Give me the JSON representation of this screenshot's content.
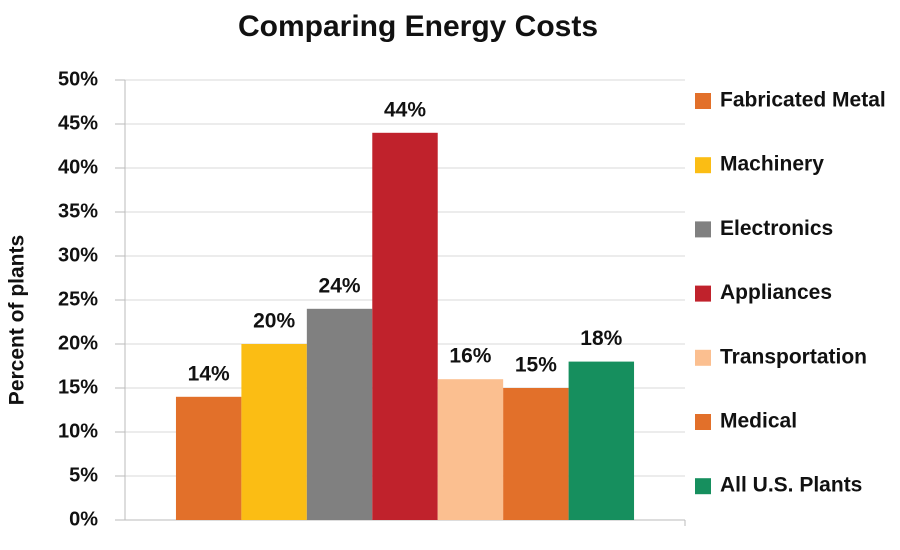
{
  "chart_data": {
    "type": "bar",
    "title": "Comparing Energy Costs",
    "y_label": "Percent of plants",
    "categories": [
      null
    ],
    "series": [
      {
        "name": "Fabricated Metal",
        "color": "#e2702a",
        "values": [
          14
        ],
        "value_labels": [
          "14%"
        ]
      },
      {
        "name": "Machinery",
        "color": "#fbbd14",
        "values": [
          20
        ],
        "value_labels": [
          "20%"
        ]
      },
      {
        "name": "Electronics",
        "color": "#808080",
        "values": [
          24
        ],
        "value_labels": [
          "24%"
        ]
      },
      {
        "name": "Appliances",
        "color": "#c0222c",
        "values": [
          44
        ],
        "value_labels": [
          "44%"
        ]
      },
      {
        "name": "Transportation",
        "color": "#fbbf90",
        "values": [
          16
        ],
        "value_labels": [
          "16%"
        ]
      },
      {
        "name": "Medical",
        "color": "#e2702a",
        "values": [
          15
        ],
        "value_labels": [
          "15%"
        ]
      },
      {
        "name": "All U.S. Plants",
        "color": "#168f5e",
        "values": [
          18
        ],
        "value_labels": [
          "18%"
        ]
      }
    ],
    "ylim": [
      0,
      50
    ],
    "yticks": [
      {
        "value": 0,
        "label": "0%"
      },
      {
        "value": 5,
        "label": "5%"
      },
      {
        "value": 10,
        "label": "10%"
      },
      {
        "value": 15,
        "label": "15%"
      },
      {
        "value": 20,
        "label": "20%"
      },
      {
        "value": 25,
        "label": "25%"
      },
      {
        "value": 30,
        "label": "30%"
      },
      {
        "value": 35,
        "label": "35%"
      },
      {
        "value": 40,
        "label": "40%"
      },
      {
        "value": 45,
        "label": "45%"
      },
      {
        "value": 50,
        "label": "50%"
      }
    ],
    "grid": true,
    "legend": "right"
  }
}
